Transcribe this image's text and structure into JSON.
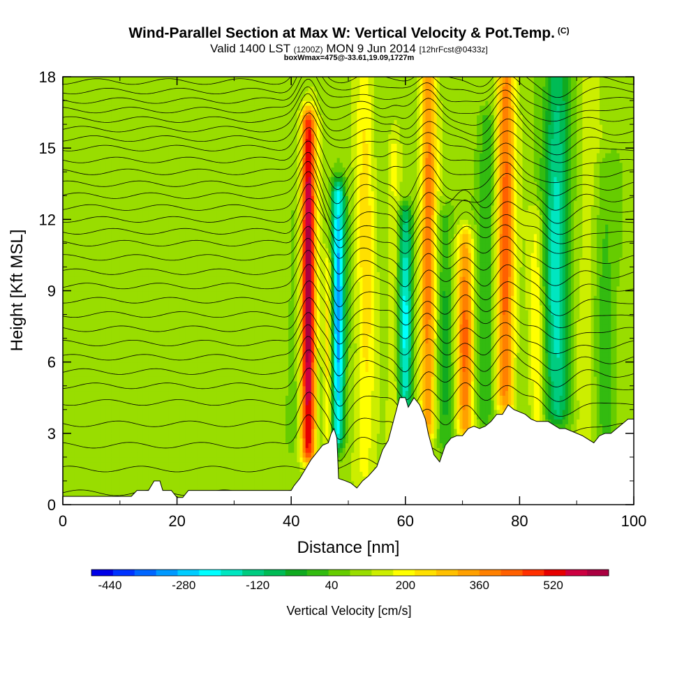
{
  "title": {
    "main": "Wind-Parallel Section at Max W: Vertical Velocity & Pot.Temp.",
    "copyright": "(C)",
    "valid_a": "Valid 1400 LST",
    "valid_b": "(1200Z)",
    "valid_c": "MON 9 Jun 2014",
    "valid_d": "[12hrFcst@0433z]",
    "box": "boxWmax=475@-33.61,19.09,1727m"
  },
  "chart_data": {
    "type": "heatmap",
    "xlabel": "Distance [nm]",
    "ylabel": "Height [Kft MSL]",
    "xlim": [
      0,
      100
    ],
    "ylim": [
      0,
      18
    ],
    "xticks": [
      0,
      20,
      40,
      60,
      80,
      100
    ],
    "yticks": [
      0,
      3,
      6,
      9,
      12,
      15,
      18
    ],
    "colorbar": {
      "label": "Vertical Velocity [cm/s]",
      "min": -480,
      "max": 640,
      "step": 40,
      "tick_labels": [
        "-440",
        "-280",
        "-120",
        "40",
        "200",
        "360",
        "520"
      ],
      "tick_values": [
        -440,
        -280,
        -120,
        40,
        200,
        360,
        520
      ],
      "colors": [
        "#0000e6",
        "#0033ff",
        "#0066ff",
        "#0099ff",
        "#00ccff",
        "#00ffff",
        "#00e6c0",
        "#00cc80",
        "#00bb55",
        "#10aa20",
        "#33bb10",
        "#66cc00",
        "#99dd00",
        "#ccee00",
        "#ffff00",
        "#ffe000",
        "#ffc000",
        "#ffa000",
        "#ff8000",
        "#ff6000",
        "#ff3000",
        "#e60000",
        "#cc0040",
        "#aa0040"
      ]
    },
    "terrain_kft": [
      [
        0,
        0.35
      ],
      [
        12,
        0.35
      ],
      [
        13,
        0.6
      ],
      [
        15,
        0.6
      ],
      [
        16,
        1.0
      ],
      [
        17,
        1.0
      ],
      [
        17.5,
        0.6
      ],
      [
        19,
        0.6
      ],
      [
        20,
        0.3
      ],
      [
        21,
        0.3
      ],
      [
        22,
        0.6
      ],
      [
        40,
        0.6
      ],
      [
        40.5,
        0.8
      ],
      [
        41.5,
        1.1
      ],
      [
        42.5,
        1.5
      ],
      [
        43.5,
        1.9
      ],
      [
        44.5,
        2.2
      ],
      [
        45.5,
        2.5
      ],
      [
        46.5,
        2.6
      ],
      [
        47,
        3.0
      ],
      [
        47.5,
        3.2
      ],
      [
        48,
        2.8
      ],
      [
        48.3,
        1.1
      ],
      [
        49.5,
        1.0
      ],
      [
        50.5,
        0.9
      ],
      [
        51.5,
        0.7
      ],
      [
        52.5,
        1.0
      ],
      [
        53.5,
        1.2
      ],
      [
        55,
        1.6
      ],
      [
        56,
        2.3
      ],
      [
        57,
        2.7
      ],
      [
        58,
        3.6
      ],
      [
        59,
        4.5
      ],
      [
        60,
        4.5
      ],
      [
        60.5,
        4.1
      ],
      [
        61.5,
        4.5
      ],
      [
        62.5,
        4.2
      ],
      [
        63.5,
        3.6
      ],
      [
        64,
        3.0
      ],
      [
        65,
        2.1
      ],
      [
        66,
        1.8
      ],
      [
        67,
        2.5
      ],
      [
        68,
        2.8
      ],
      [
        69,
        2.9
      ],
      [
        70,
        2.9
      ],
      [
        71,
        3.2
      ],
      [
        72,
        3.3
      ],
      [
        73,
        3.2
      ],
      [
        74,
        3.3
      ],
      [
        75,
        3.5
      ],
      [
        76,
        3.8
      ],
      [
        77,
        3.8
      ],
      [
        78,
        4.2
      ],
      [
        79,
        4.0
      ],
      [
        80,
        3.9
      ],
      [
        81,
        3.8
      ],
      [
        82,
        3.6
      ],
      [
        83,
        3.5
      ],
      [
        85,
        3.5
      ],
      [
        87,
        3.2
      ],
      [
        88,
        3.2
      ],
      [
        90,
        3.0
      ],
      [
        91,
        2.9
      ],
      [
        93,
        2.6
      ],
      [
        94,
        2.9
      ],
      [
        95,
        3.0
      ],
      [
        96,
        3.0
      ],
      [
        97,
        3.2
      ],
      [
        98,
        3.4
      ],
      [
        99,
        3.6
      ],
      [
        100,
        3.6
      ]
    ],
    "updrafts": [
      {
        "x": 43,
        "w": 1.3,
        "y0": 2.5,
        "y1": 16.0,
        "peak": 475
      },
      {
        "x": 46.5,
        "w": 0.8,
        "y0": 3,
        "y1": 10,
        "peak": 150
      },
      {
        "x": 53,
        "w": 1.6,
        "y0": 1.5,
        "y1": 18,
        "peak": 120
      },
      {
        "x": 58,
        "w": 0.9,
        "y0": 1.5,
        "y1": 15,
        "peak": 80
      },
      {
        "x": 64,
        "w": 1.4,
        "y0": 3.5,
        "y1": 18,
        "peak": 260
      },
      {
        "x": 70.5,
        "w": 1.5,
        "y0": 3.5,
        "y1": 11,
        "peak": 280
      },
      {
        "x": 77.5,
        "w": 1.6,
        "y0": 4.5,
        "y1": 18,
        "peak": 300
      },
      {
        "x": 83,
        "w": 1.2,
        "y0": 3.5,
        "y1": 12,
        "peak": 100
      },
      {
        "x": 92,
        "w": 2.0,
        "y0": 3.0,
        "y1": 18,
        "peak": 50
      }
    ],
    "downdrafts": [
      {
        "x": 48.2,
        "w": 1.2,
        "y0": 3,
        "y1": 13,
        "peak": -380
      },
      {
        "x": 60,
        "w": 1.3,
        "y0": 4,
        "y1": 12,
        "peak": -280
      },
      {
        "x": 86.5,
        "w": 2.2,
        "y0": 4,
        "y1": 18,
        "peak": -250
      },
      {
        "x": 67,
        "w": 1.5,
        "y0": 3,
        "y1": 12,
        "peak": -120
      },
      {
        "x": 74,
        "w": 1.8,
        "y0": 4,
        "y1": 16,
        "peak": -110
      },
      {
        "x": 95,
        "w": 2.0,
        "y0": 3,
        "y1": 14,
        "peak": -90
      },
      {
        "x": 40.5,
        "w": 1.0,
        "y0": 3,
        "y1": 12,
        "peak": -60
      }
    ],
    "isentropes_base_kft": [
      0.5,
      1.5,
      2.5,
      3.4,
      4.3,
      5.0,
      5.6,
      6.2,
      6.8,
      7.4,
      8.0,
      8.6,
      9.2,
      9.8,
      10.4,
      11.0,
      11.5,
      12.0,
      12.5,
      13.0,
      13.5,
      14.0,
      14.5,
      15.0,
      15.4,
      15.8,
      16.2,
      16.6,
      17.0,
      17.4,
      17.8
    ]
  }
}
